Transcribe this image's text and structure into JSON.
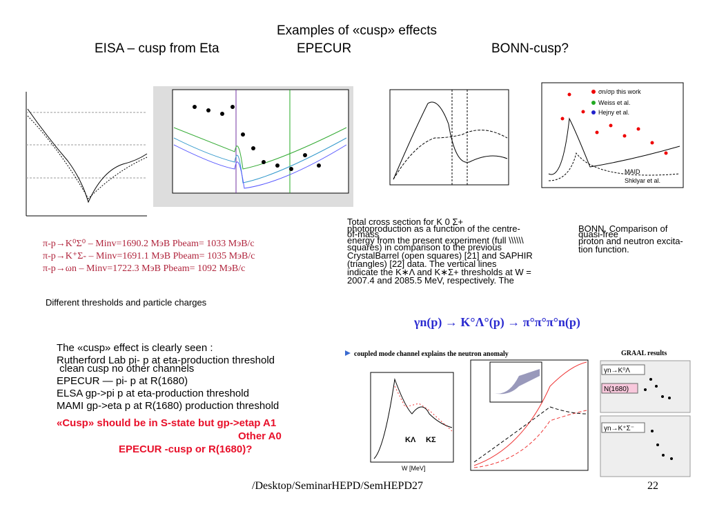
{
  "header": {
    "title": "Examples of «cusp» effects",
    "subtitles": [
      "EISA – cusp from Eta",
      "EPECUR",
      "BONN-cusp?"
    ]
  },
  "epecur_caption": [
    "Total cross section for K 0 Σ+",
    "photoproduction as a function of the centre-",
    "of-mass",
    "energy from the present experiment (full \\\\\\\\\\\\",
    "squares) in comparison to the previous",
    "CrystalBarrel (open squares) [21] and SAPHIR",
    "(triangles) [22] data. The vertical lines",
    "indicate the K∗Λ and K∗Σ+ thresholds at W =",
    "2007.4 and 2085.5 MeV, respectively. The"
  ],
  "bonn_caption": [
    "BONN. Comparison of",
    "quasi-free",
    "proton and neutron excita-",
    "tion function."
  ],
  "reactions": [
    "π-p→K⁰Σ⁰  –  Minv=1690.2 MэB  Pbeam=  1033 MэB/c",
    "π-p→K⁺Σ-  –  Minv=1691.1 MэB  Pbeam=  1035 MэB/c",
    "π-p→ωn    –  Minv=1722.3 MэB  Pbeam=  1092 MэB/c"
  ],
  "thresholds_note": "Different thresholds and particle charges",
  "formula": "γn(p) → K°Λ°(p) → π°π°π°n(p)",
  "body": [
    "The «cusp» effect is clearly seen :",
    "Rutherford Lab  pi- p  at eta-production threshold",
    " clean cusp no other channels",
    "EPECUR — pi- p at R(1680)",
    "ELSA gp->pi p at eta-production threshold",
    "MAMI gp->eta p at R(1680) production threshold"
  ],
  "red_lines": [
    "«Cusp» should be in S-state but gp->etap A1",
    "Other A0",
    "EPECUR -cusp or  R(1680)?"
  ],
  "plots": {
    "bonn_legend": [
      "σn/σp this work",
      "Weiss et al.",
      "Hejny et al.",
      "MAID",
      "Shklyar et al."
    ],
    "coupled_title": "coupled mode channel explains the neutron anomaly",
    "graal_title": "GRAAL results",
    "graal_labels": [
      "γn→K⁰Λ",
      "N(1680)",
      "γn→K⁺Σ⁻"
    ],
    "channel_labels": [
      "KΛ",
      "KΣ"
    ],
    "w_axis": "W [MeV]"
  },
  "footer": {
    "path": "/Desktop/SeminarHEPD/SemHEPD27",
    "page": "22"
  }
}
